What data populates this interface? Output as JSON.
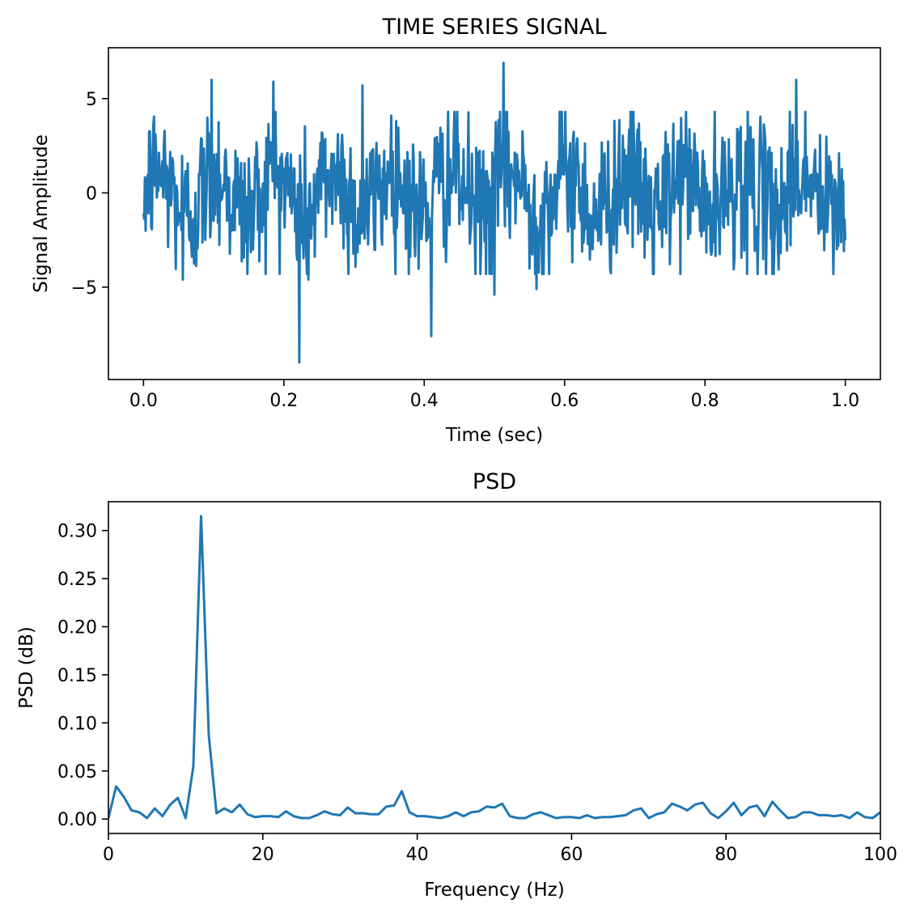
{
  "chart_data": [
    {
      "type": "line",
      "title": "TIME SERIES SIGNAL",
      "xlabel": "Time (sec)",
      "ylabel": "Signal Amplitude",
      "xlim": [
        -0.05,
        1.05
      ],
      "ylim": [
        -9.9,
        7.7
      ],
      "xticks": [
        0.0,
        0.2,
        0.4,
        0.6,
        0.8,
        1.0
      ],
      "xtick_labels": [
        "0.0",
        "0.2",
        "0.4",
        "0.6",
        "0.8",
        "1.0"
      ],
      "yticks": [
        -5,
        0,
        5
      ],
      "ytick_labels": [
        "−5",
        "0",
        "5"
      ],
      "grid": false,
      "color": "#1f77b4",
      "noise_std": 2.0,
      "notable_points": [
        {
          "x": 0.0,
          "y": -1.1
        },
        {
          "x": 0.056,
          "y": -4.6
        },
        {
          "x": 0.097,
          "y": 6.0
        },
        {
          "x": 0.185,
          "y": 5.9
        },
        {
          "x": 0.222,
          "y": -9.0
        },
        {
          "x": 0.235,
          "y": -4.6
        },
        {
          "x": 0.312,
          "y": 5.7
        },
        {
          "x": 0.41,
          "y": -7.6
        },
        {
          "x": 0.5,
          "y": -5.4
        },
        {
          "x": 0.513,
          "y": 6.9
        },
        {
          "x": 0.56,
          "y": -5.1
        },
        {
          "x": 0.86,
          "y": -4.3
        },
        {
          "x": 0.93,
          "y": 6.0
        },
        {
          "x": 1.0,
          "y": -2.5
        }
      ]
    },
    {
      "type": "line",
      "title": "PSD",
      "xlabel": "Frequency (Hz)",
      "ylabel": "PSD (dB)",
      "xlim": [
        0,
        100
      ],
      "ylim": [
        -0.015,
        0.33
      ],
      "xticks": [
        0,
        20,
        40,
        60,
        80,
        100
      ],
      "xtick_labels": [
        "0",
        "20",
        "40",
        "60",
        "80",
        "100"
      ],
      "yticks": [
        0.0,
        0.05,
        0.1,
        0.15,
        0.2,
        0.25,
        0.3
      ],
      "ytick_labels": [
        "0.00",
        "0.05",
        "0.10",
        "0.15",
        "0.20",
        "0.25",
        "0.30"
      ],
      "grid": false,
      "color": "#1f77b4",
      "x": [
        0,
        1,
        2,
        3,
        4,
        5,
        6,
        7,
        8,
        9,
        10,
        11,
        12,
        13,
        14,
        15,
        16,
        17,
        18,
        19,
        20,
        21,
        22,
        23,
        24,
        25,
        26,
        27,
        28,
        29,
        30,
        31,
        32,
        33,
        34,
        35,
        36,
        37,
        38,
        39,
        40,
        41,
        42,
        43,
        44,
        45,
        46,
        47,
        48,
        49,
        50,
        51,
        52,
        53,
        54,
        55,
        56,
        57,
        58,
        59,
        60,
        61,
        62,
        63,
        64,
        65,
        66,
        67,
        68,
        69,
        70,
        71,
        72,
        73,
        74,
        75,
        76,
        77,
        78,
        79,
        80,
        81,
        82,
        83,
        84,
        85,
        86,
        87,
        88,
        89,
        90,
        91,
        92,
        93,
        94,
        95,
        96,
        97,
        98,
        99,
        100
      ],
      "y": [
        0.001,
        0.034,
        0.023,
        0.009,
        0.007,
        0.001,
        0.011,
        0.003,
        0.015,
        0.022,
        0.001,
        0.055,
        0.315,
        0.087,
        0.006,
        0.011,
        0.007,
        0.015,
        0.005,
        0.002,
        0.003,
        0.003,
        0.002,
        0.008,
        0.003,
        0.001,
        0.001,
        0.004,
        0.008,
        0.005,
        0.004,
        0.012,
        0.006,
        0.006,
        0.005,
        0.005,
        0.013,
        0.014,
        0.029,
        0.007,
        0.003,
        0.003,
        0.002,
        0.001,
        0.003,
        0.007,
        0.003,
        0.007,
        0.008,
        0.013,
        0.012,
        0.016,
        0.003,
        0.001,
        0.001,
        0.005,
        0.007,
        0.004,
        0.001,
        0.002,
        0.002,
        0.001,
        0.004,
        0.001,
        0.002,
        0.002,
        0.003,
        0.004,
        0.009,
        0.011,
        0.001,
        0.005,
        0.007,
        0.016,
        0.013,
        0.009,
        0.015,
        0.017,
        0.006,
        0.001,
        0.008,
        0.017,
        0.004,
        0.012,
        0.014,
        0.003,
        0.018,
        0.009,
        0.001,
        0.002,
        0.007,
        0.007,
        0.004,
        0.004,
        0.003,
        0.004,
        0.001,
        0.007,
        0.002,
        0.001,
        0.007
      ]
    }
  ]
}
